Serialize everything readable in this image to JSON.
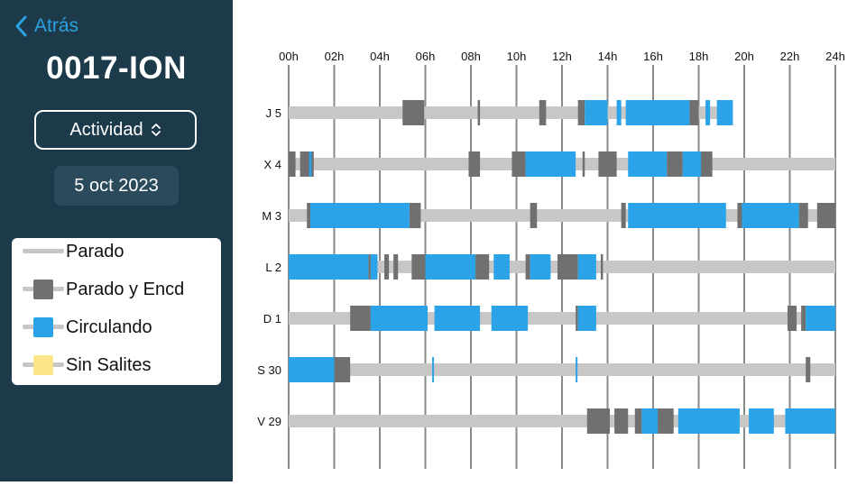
{
  "nav": {
    "back_label": "Atrás"
  },
  "vehicle": {
    "title": "0017-ION"
  },
  "view_selector": {
    "label": "Actividad"
  },
  "date": {
    "label": "5 oct 2023"
  },
  "legend": [
    {
      "label": "Parado",
      "color": "#c9c6c6",
      "has_box": false
    },
    {
      "label": "Parado y Encd",
      "color": "#707070",
      "has_box": true
    },
    {
      "label": "Circulando",
      "color": "#2aa3e8",
      "has_box": true
    },
    {
      "label": "Sin Salites",
      "color": "#fde38a",
      "has_box": true
    }
  ],
  "colors": {
    "sidebar": "#1d3a4b",
    "accent": "#2aa3e0",
    "parado": "#c9c6c6",
    "parado_encd": "#707070",
    "circulando": "#2aa3e8",
    "sin_salites": "#fde38a"
  },
  "chart_data": {
    "type": "timeline",
    "x_unit": "hours",
    "xlim": [
      0,
      24
    ],
    "x_ticks": [
      "00h",
      "02h",
      "04h",
      "06h",
      "08h",
      "10h",
      "12h",
      "14h",
      "16h",
      "18h",
      "20h",
      "22h",
      "24h"
    ],
    "rows": [
      {
        "label": "J 5",
        "segments": [
          {
            "state": "parado",
            "start": 0.0,
            "end": 19.5
          },
          {
            "state": "parado_encd",
            "start": 5.0,
            "end": 5.95
          },
          {
            "state": "parado_encd",
            "start": 8.3,
            "end": 8.4
          },
          {
            "state": "parado_encd",
            "start": 11.0,
            "end": 11.3
          },
          {
            "state": "parado_encd",
            "start": 12.7,
            "end": 13.0
          },
          {
            "state": "circulando",
            "start": 13.0,
            "end": 14.0
          },
          {
            "state": "circulando",
            "start": 14.4,
            "end": 14.6
          },
          {
            "state": "circulando",
            "start": 14.8,
            "end": 17.6
          },
          {
            "state": "parado_encd",
            "start": 17.6,
            "end": 18.0
          },
          {
            "state": "circulando",
            "start": 18.3,
            "end": 18.5
          },
          {
            "state": "circulando",
            "start": 18.8,
            "end": 19.5
          }
        ]
      },
      {
        "label": "X 4",
        "segments": [
          {
            "state": "parado",
            "start": 0.0,
            "end": 24.0
          },
          {
            "state": "parado_encd",
            "start": 0.0,
            "end": 0.3
          },
          {
            "state": "parado_encd",
            "start": 0.5,
            "end": 1.1
          },
          {
            "state": "circulando",
            "start": 0.9,
            "end": 1.0
          },
          {
            "state": "parado_encd",
            "start": 7.9,
            "end": 8.4
          },
          {
            "state": "parado_encd",
            "start": 9.8,
            "end": 10.4
          },
          {
            "state": "circulando",
            "start": 10.4,
            "end": 12.6
          },
          {
            "state": "parado_encd",
            "start": 12.9,
            "end": 13.0
          },
          {
            "state": "parado_encd",
            "start": 13.6,
            "end": 14.4
          },
          {
            "state": "circulando",
            "start": 14.9,
            "end": 16.6
          },
          {
            "state": "parado_encd",
            "start": 16.6,
            "end": 17.3
          },
          {
            "state": "circulando",
            "start": 17.3,
            "end": 18.1
          },
          {
            "state": "parado_encd",
            "start": 18.1,
            "end": 18.6
          }
        ]
      },
      {
        "label": "M 3",
        "segments": [
          {
            "state": "parado",
            "start": 0.0,
            "end": 24.0
          },
          {
            "state": "parado_encd",
            "start": 0.8,
            "end": 0.95
          },
          {
            "state": "circulando",
            "start": 0.95,
            "end": 5.3
          },
          {
            "state": "parado_encd",
            "start": 5.3,
            "end": 5.8
          },
          {
            "state": "parado_encd",
            "start": 10.6,
            "end": 10.9
          },
          {
            "state": "parado_encd",
            "start": 14.6,
            "end": 14.8
          },
          {
            "state": "circulando",
            "start": 14.9,
            "end": 19.2
          },
          {
            "state": "parado_encd",
            "start": 19.7,
            "end": 19.9
          },
          {
            "state": "circulando",
            "start": 19.9,
            "end": 22.4
          },
          {
            "state": "parado_encd",
            "start": 22.4,
            "end": 22.8
          },
          {
            "state": "parado_encd",
            "start": 23.2,
            "end": 24.0
          }
        ]
      },
      {
        "label": "L 2",
        "segments": [
          {
            "state": "parado",
            "start": 0.0,
            "end": 24.0
          },
          {
            "state": "circulando",
            "start": 0.0,
            "end": 3.5
          },
          {
            "state": "parado_encd",
            "start": 3.5,
            "end": 3.6
          },
          {
            "state": "circulando",
            "start": 3.6,
            "end": 3.9
          },
          {
            "state": "parado_encd",
            "start": 4.2,
            "end": 4.4
          },
          {
            "state": "parado_encd",
            "start": 4.6,
            "end": 4.8
          },
          {
            "state": "parado_encd",
            "start": 5.4,
            "end": 6.0
          },
          {
            "state": "circulando",
            "start": 6.0,
            "end": 8.2
          },
          {
            "state": "parado_encd",
            "start": 8.2,
            "end": 8.8
          },
          {
            "state": "circulando",
            "start": 9.0,
            "end": 9.7
          },
          {
            "state": "parado_encd",
            "start": 10.4,
            "end": 10.6
          },
          {
            "state": "circulando",
            "start": 10.6,
            "end": 11.5
          },
          {
            "state": "parado_encd",
            "start": 11.8,
            "end": 12.7
          },
          {
            "state": "circulando",
            "start": 12.7,
            "end": 13.5
          },
          {
            "state": "parado_encd",
            "start": 13.7,
            "end": 13.8
          }
        ]
      },
      {
        "label": "D 1",
        "segments": [
          {
            "state": "parado",
            "start": 0.0,
            "end": 24.0
          },
          {
            "state": "parado_encd",
            "start": 2.7,
            "end": 3.6
          },
          {
            "state": "circulando",
            "start": 3.6,
            "end": 6.1
          },
          {
            "state": "circulando",
            "start": 6.4,
            "end": 8.4
          },
          {
            "state": "circulando",
            "start": 8.9,
            "end": 10.5
          },
          {
            "state": "parado_encd",
            "start": 12.6,
            "end": 12.7
          },
          {
            "state": "circulando",
            "start": 12.7,
            "end": 13.5
          },
          {
            "state": "parado_encd",
            "start": 21.9,
            "end": 22.3
          },
          {
            "state": "parado_encd",
            "start": 22.5,
            "end": 22.7
          },
          {
            "state": "circulando",
            "start": 22.7,
            "end": 24.0
          }
        ]
      },
      {
        "label": "S 30",
        "segments": [
          {
            "state": "parado",
            "start": 0.0,
            "end": 24.0
          },
          {
            "state": "circulando",
            "start": 0.0,
            "end": 2.0
          },
          {
            "state": "parado_encd",
            "start": 2.0,
            "end": 2.7
          },
          {
            "state": "circulando",
            "start": 6.3,
            "end": 6.35
          },
          {
            "state": "circulando",
            "start": 12.6,
            "end": 12.65
          },
          {
            "state": "parado_encd",
            "start": 22.7,
            "end": 22.9
          }
        ]
      },
      {
        "label": "V 29",
        "segments": [
          {
            "state": "parado",
            "start": 0.0,
            "end": 24.0
          },
          {
            "state": "parado_encd",
            "start": 13.1,
            "end": 14.1
          },
          {
            "state": "parado_encd",
            "start": 14.3,
            "end": 14.9
          },
          {
            "state": "parado_encd",
            "start": 15.2,
            "end": 15.5
          },
          {
            "state": "circulando",
            "start": 15.5,
            "end": 16.2
          },
          {
            "state": "parado_encd",
            "start": 16.2,
            "end": 16.9
          },
          {
            "state": "circulando",
            "start": 17.1,
            "end": 19.8
          },
          {
            "state": "circulando",
            "start": 20.2,
            "end": 21.3
          },
          {
            "state": "circulando",
            "start": 21.8,
            "end": 24.0
          }
        ]
      }
    ]
  }
}
